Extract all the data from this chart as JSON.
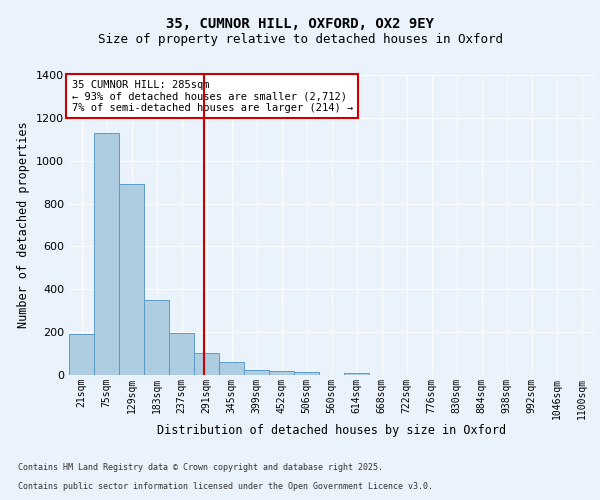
{
  "title1": "35, CUMNOR HILL, OXFORD, OX2 9EY",
  "title2": "Size of property relative to detached houses in Oxford",
  "xlabel": "Distribution of detached houses by size in Oxford",
  "ylabel": "Number of detached properties",
  "categories": [
    "21sqm",
    "75sqm",
    "129sqm",
    "183sqm",
    "237sqm",
    "291sqm",
    "345sqm",
    "399sqm",
    "452sqm",
    "506sqm",
    "560sqm",
    "614sqm",
    "668sqm",
    "722sqm",
    "776sqm",
    "830sqm",
    "884sqm",
    "938sqm",
    "992sqm",
    "1046sqm",
    "1100sqm"
  ],
  "values": [
    193,
    1130,
    893,
    352,
    196,
    103,
    62,
    25,
    20,
    13,
    0,
    10,
    0,
    0,
    0,
    0,
    0,
    0,
    0,
    0,
    0
  ],
  "bar_color": "#aecde0",
  "bar_edge_color": "#5b9bc8",
  "vline_color": "#cc0000",
  "vline_x": 4.9,
  "annotation_title": "35 CUMNOR HILL: 285sqm",
  "annotation_line1": "← 93% of detached houses are smaller (2,712)",
  "annotation_line2": "7% of semi-detached houses are larger (214) →",
  "annotation_box_edgecolor": "#cc0000",
  "ylim": [
    0,
    1400
  ],
  "yticks": [
    0,
    200,
    400,
    600,
    800,
    1000,
    1200,
    1400
  ],
  "footer1": "Contains HM Land Registry data © Crown copyright and database right 2025.",
  "footer2": "Contains public sector information licensed under the Open Government Licence v3.0.",
  "bg_color": "#eaf2fb",
  "plot_bg_color": "#eaf2fb",
  "grid_color": "#ffffff",
  "title_fontsize": 10,
  "subtitle_fontsize": 9,
  "tick_fontsize": 7,
  "label_fontsize": 8.5,
  "annotation_fontsize": 7.5,
  "footer_fontsize": 6
}
